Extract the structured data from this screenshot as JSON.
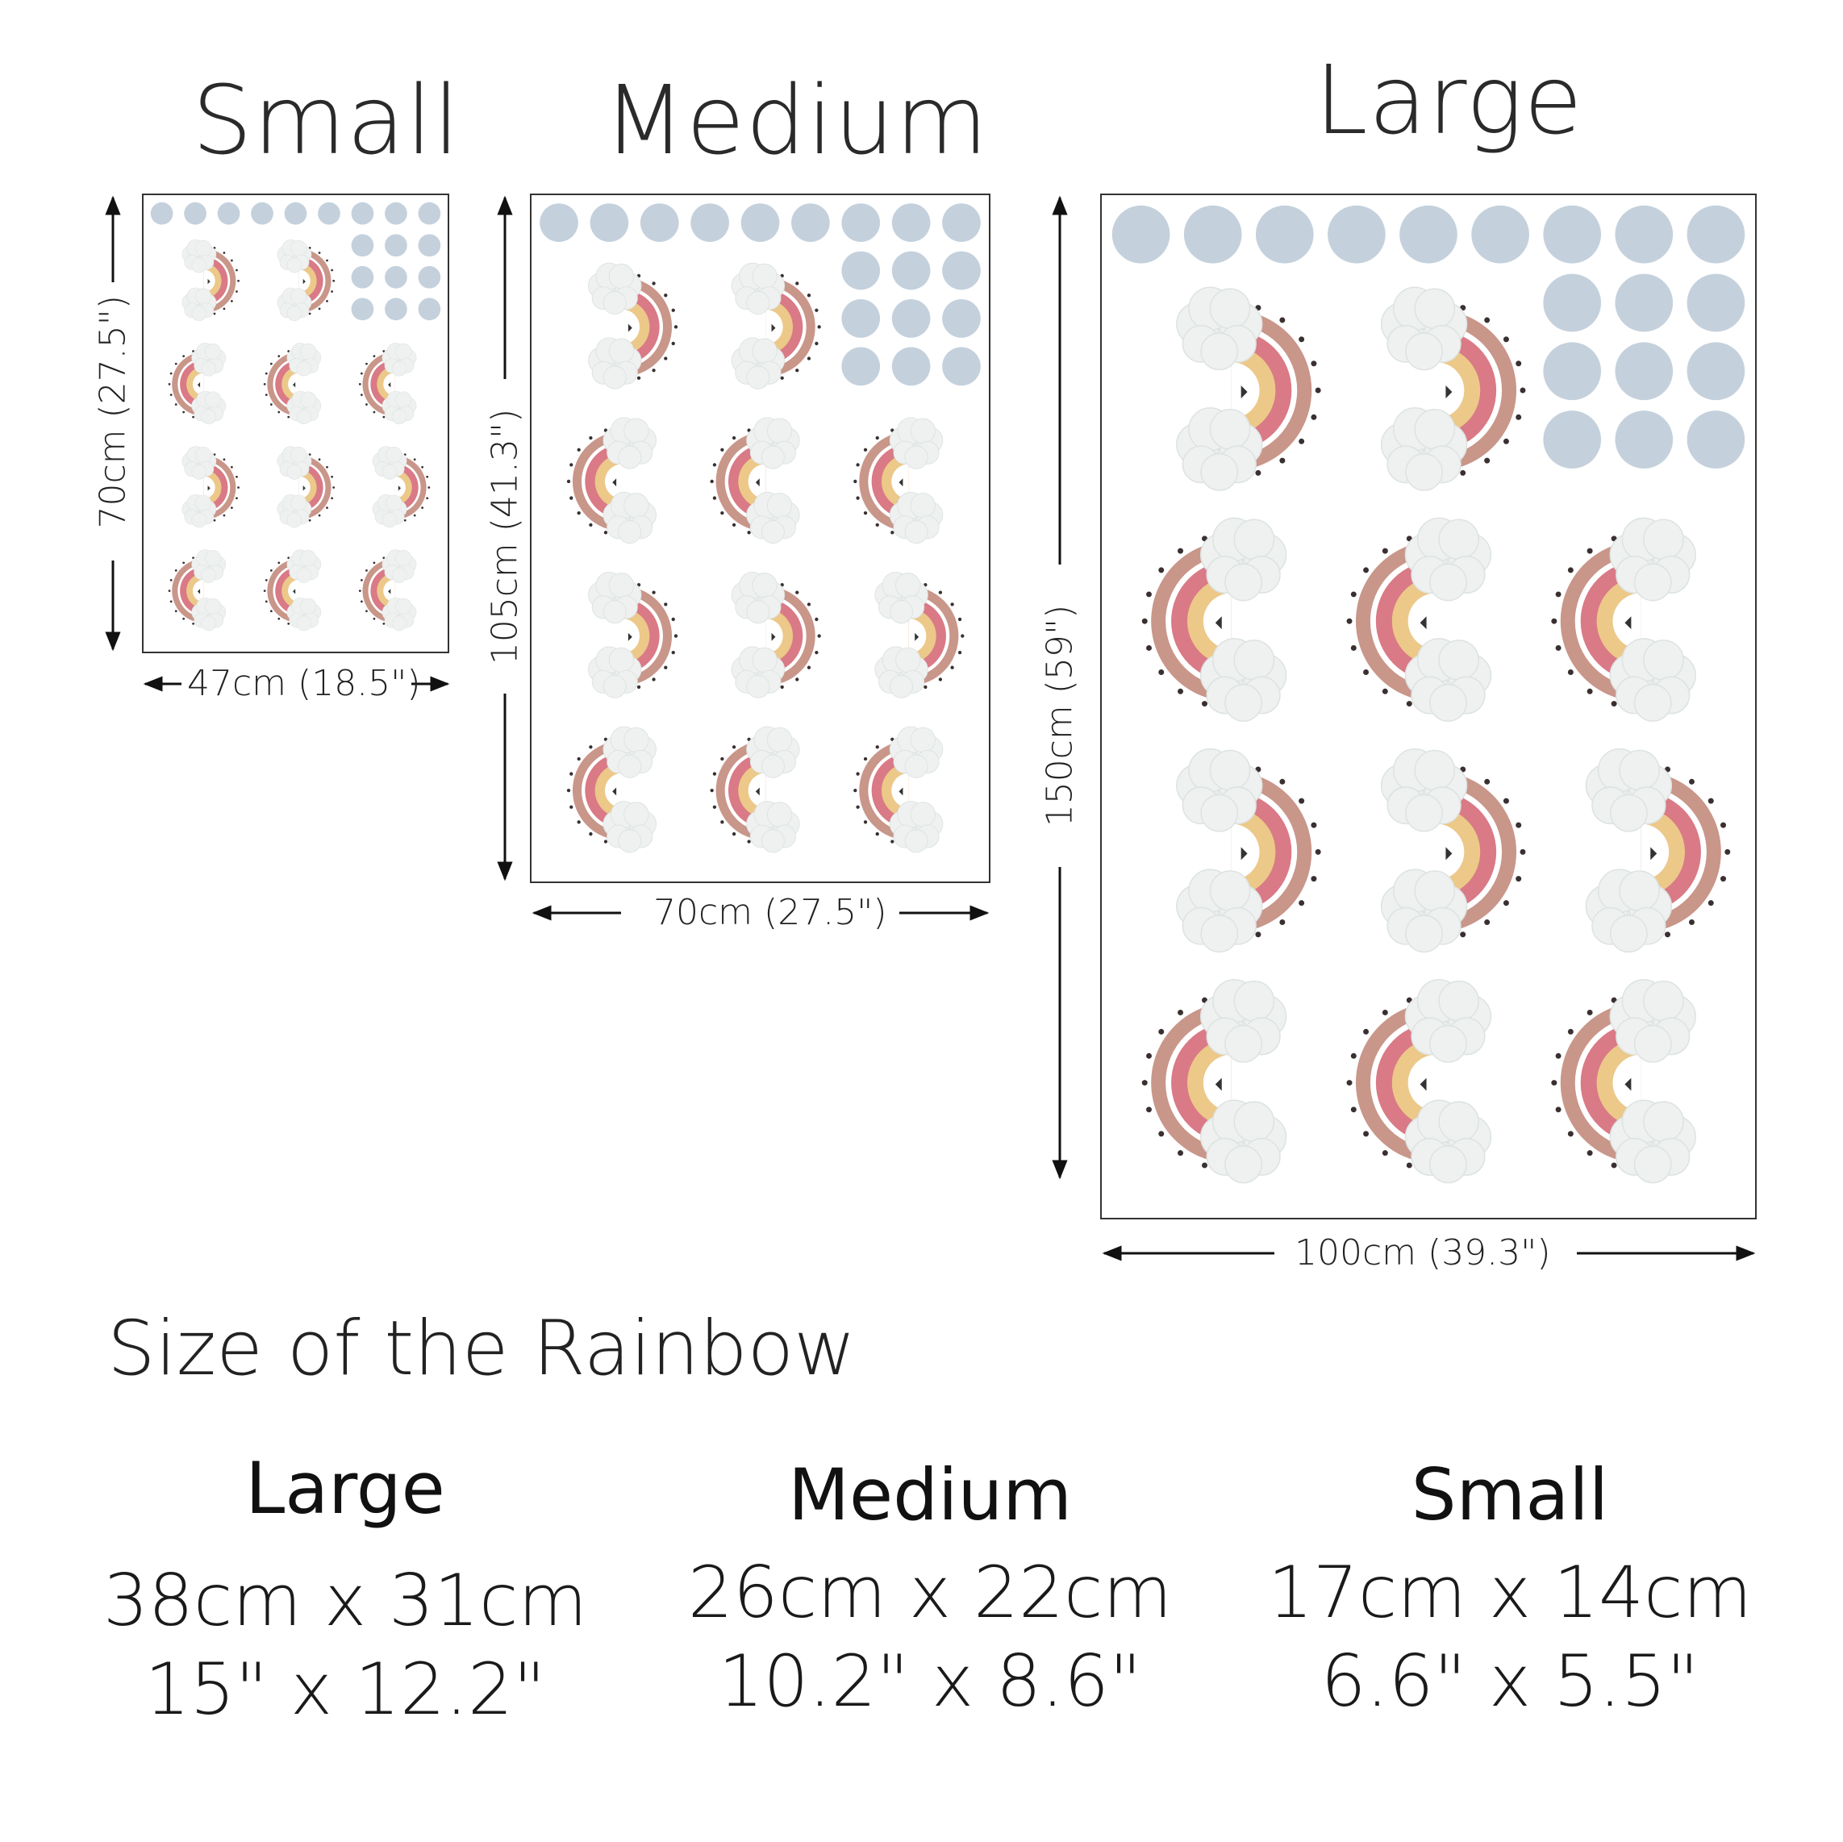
{
  "sheets": {
    "small": {
      "title": "Small",
      "height_label": "70cm (27.5\")",
      "width_label": "47cm (18.5\")"
    },
    "medium": {
      "title": "Medium",
      "height_label": "105cm (41.3\")",
      "width_label": "70cm (27.5\")"
    },
    "large": {
      "title": "Large",
      "height_label": "150cm (59\")",
      "width_label": "100cm (39.3\")"
    }
  },
  "rainbow_sizes": {
    "heading": "Size of the Rainbow",
    "items": [
      {
        "name": "Large",
        "metric": "38cm x 31cm",
        "imperial": "15\" x 12.2\""
      },
      {
        "name": "Medium",
        "metric": "26cm x 22cm",
        "imperial": "10.2\" x 8.6\""
      },
      {
        "name": "Small",
        "metric": "17cm x 14cm",
        "imperial": "6.6\" x 5.5\""
      }
    ]
  },
  "colors": {
    "dot_blue": "#c4d1dc",
    "rainbow_outer": "#c9968a",
    "rainbow_pink": "#d97a86",
    "rainbow_yellow": "#ecc889",
    "cloud": "#eef1ef"
  }
}
